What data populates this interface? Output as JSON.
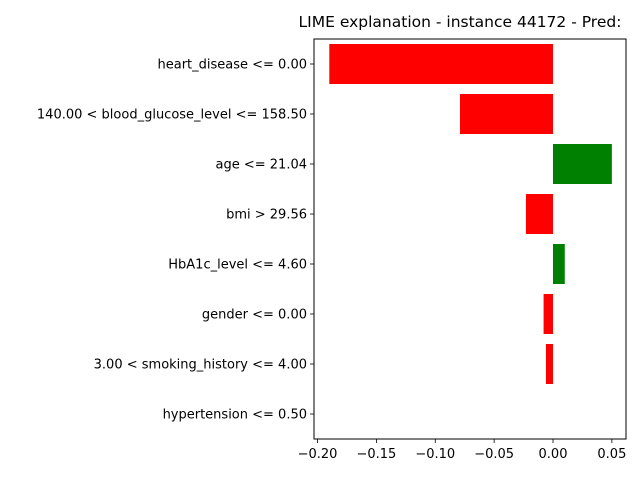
{
  "chart_data": {
    "type": "bar",
    "orientation": "horizontal",
    "title": "LIME explanation - instance 44172 - Pred:",
    "xlabel": "",
    "ylabel": "",
    "xlim": [
      -0.203,
      0.062
    ],
    "xticks": [
      -0.2,
      -0.15,
      -0.1,
      -0.05,
      0.0,
      0.05
    ],
    "xtick_labels": [
      "−0.20",
      "−0.15",
      "−0.10",
      "−0.05",
      "0.00",
      "0.05"
    ],
    "grid": false,
    "legend": "none",
    "categories": [
      "heart_disease <= 0.00",
      "140.00 < blood_glucose_level <= 158.50",
      "age <= 21.04",
      "bmi > 29.56",
      "HbA1c_level <= 4.60",
      "gender <= 0.00",
      "3.00 < smoking_history <= 4.00",
      "hypertension <= 0.50"
    ],
    "values": [
      -0.19,
      -0.079,
      0.05,
      -0.023,
      0.01,
      -0.008,
      -0.006,
      0.0
    ],
    "colors": {
      "positive": "#008000",
      "negative": "#ff0000"
    }
  }
}
